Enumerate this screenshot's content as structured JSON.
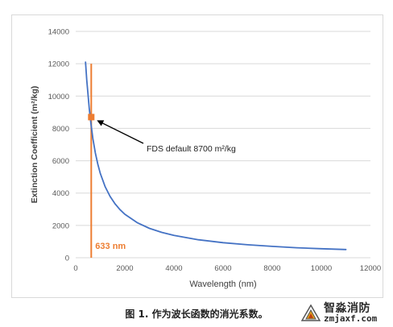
{
  "chart_data": {
    "type": "line",
    "xlabel": "Wavelength (nm)",
    "ylabel": "Extinction Coefficient (m²/kg)",
    "xlim": [
      0,
      12000
    ],
    "ylim": [
      0,
      14000
    ],
    "x_ticks": [
      "0",
      "2000",
      "4000",
      "6000",
      "8000",
      "10000",
      "12000"
    ],
    "y_ticks": [
      "0",
      "2000",
      "4000",
      "6000",
      "8000",
      "10000",
      "12000",
      "14000"
    ],
    "grid": "horizontal",
    "legend": "none",
    "series": [
      {
        "color": "#4472c4",
        "x": [
          400,
          450,
          500,
          550,
          600,
          633,
          700,
          800,
          900,
          1000,
          1200,
          1400,
          1600,
          1800,
          2000,
          2500,
          3000,
          3500,
          4000,
          5000,
          6000,
          7000,
          8000,
          9000,
          10000,
          11000
        ],
        "y": [
          12100,
          11000,
          10100,
          9250,
          8550,
          8150,
          7380,
          6480,
          5780,
          5220,
          4390,
          3790,
          3340,
          2980,
          2690,
          2170,
          1820,
          1570,
          1380,
          1110,
          930,
          800,
          700,
          620,
          560,
          510
        ]
      }
    ],
    "vertical_line": {
      "x": 633,
      "y_range": [
        0,
        12000
      ],
      "color": "#ed7d31",
      "label": "633 nm"
    },
    "marker": {
      "x": 633,
      "y": 8700,
      "color": "#ed7d31"
    },
    "annotation": {
      "text": "FDS default 8700 m²/kg",
      "target_x": 633,
      "target_y": 8700
    }
  },
  "caption": "图 1. 作为波长函数的消光系数。",
  "watermark": {
    "name_cn": "智淼消防",
    "site": "zmjaxf.com"
  }
}
